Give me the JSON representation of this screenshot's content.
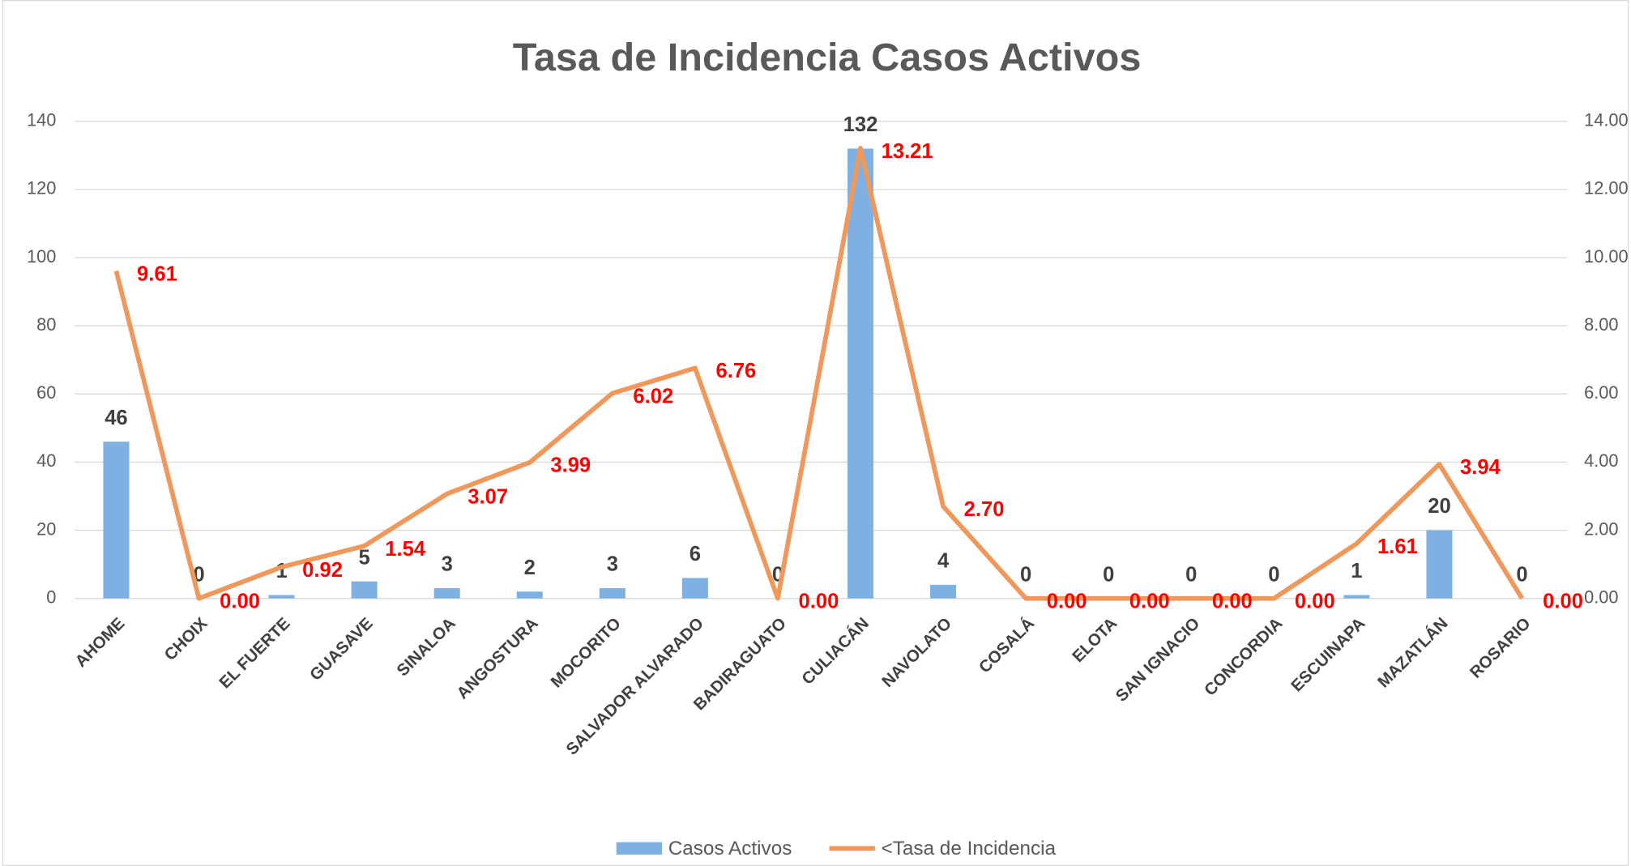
{
  "chart_data": {
    "type": "bar_line",
    "title": "Tasa de Incidencia Casos Activos",
    "categories": [
      "AHOME",
      "CHOIX",
      "EL FUERTE",
      "GUASAVE",
      "SINALOA",
      "ANGOSTURA",
      "MOCORITO",
      "SALVADOR ALVARADO",
      "BADIRAGUATO",
      "CULIACÁN",
      "NAVOLATO",
      "COSALÁ",
      "ELOTA",
      "SAN IGNACIO",
      "CONCORDIA",
      "ESCUINAPA",
      "MAZATLÁN",
      "ROSARIO"
    ],
    "series": [
      {
        "name": "Casos Activos",
        "color": "#7eb1e1",
        "type": "bar",
        "values": [
          46,
          0,
          1,
          5,
          3,
          2,
          3,
          6,
          0,
          132,
          4,
          0,
          0,
          0,
          0,
          1,
          20,
          0
        ]
      },
      {
        "name": "<Tasa de Incidencia",
        "color": "#f0975c",
        "type": "line",
        "axis": "y2",
        "values": [
          9.61,
          0,
          0.92,
          1.54,
          3.07,
          3.99,
          6.02,
          6.76,
          0,
          13.21,
          2.7,
          0,
          0,
          0,
          0,
          1.61,
          3.94,
          0
        ],
        "value_labels": [
          "9.61",
          "0.00",
          "0.92",
          "1.54",
          "3.07",
          "3.99",
          "6.02",
          "6.76",
          "0.00",
          "13.21",
          "2.70",
          "0.00",
          "0.00",
          "0.00",
          "0.00",
          "1.61",
          "3.94",
          "0.00"
        ]
      }
    ],
    "ylim": [
      0,
      140
    ],
    "yticks": [
      0,
      20,
      40,
      60,
      80,
      100,
      120,
      140
    ],
    "y2lim": [
      0,
      14
    ],
    "y2ticks": [
      {
        "value": 0,
        "label": "0.00"
      },
      {
        "value": 2,
        "label": "2.00"
      },
      {
        "value": 4,
        "label": "4.00"
      },
      {
        "value": 6,
        "label": "6.00"
      },
      {
        "value": 8,
        "label": "8.00"
      },
      {
        "value": 10,
        "label": "10.00"
      },
      {
        "value": 12,
        "label": "12.00"
      },
      {
        "value": 14,
        "label": "14.00"
      }
    ],
    "grid": true,
    "legend": "bottom"
  }
}
